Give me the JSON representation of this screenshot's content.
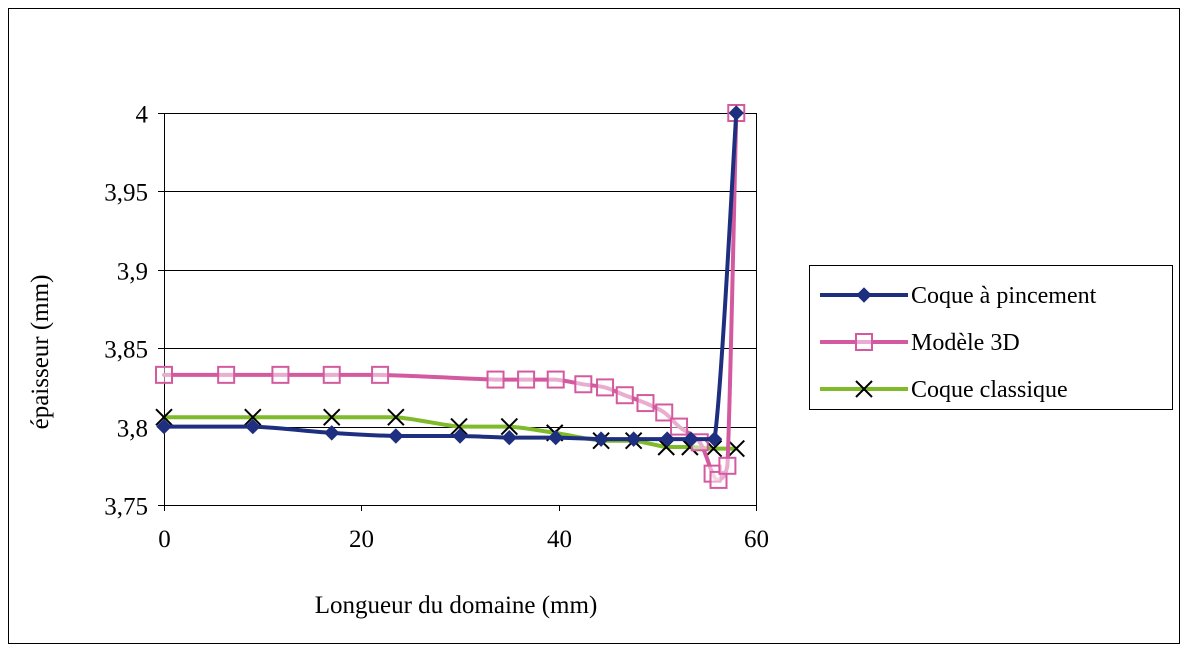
{
  "chart_data": {
    "type": "line",
    "title": "",
    "xlabel": "Longueur du domaine (mm)",
    "ylabel": "épaisseur (mm)",
    "xlim": [
      0,
      60
    ],
    "ylim": [
      3.75,
      4.0
    ],
    "xticks": [
      "0",
      "20",
      "40",
      "60"
    ],
    "yticks": [
      "3,75",
      "3,8",
      "3,85",
      "3,9",
      "3,95",
      "4"
    ],
    "grid": "horizontal",
    "legend_position": "right",
    "series": [
      {
        "name": "Coque à pincement",
        "color": "#1f2f7f",
        "marker": "filled-diamond",
        "x": [
          0,
          9,
          17,
          23.5,
          30,
          35,
          39.7,
          44.3,
          47.6,
          51,
          53.4,
          55.8,
          58
        ],
        "y": [
          3.8,
          3.8,
          3.796,
          3.794,
          3.794,
          3.793,
          3.793,
          3.792,
          3.792,
          3.792,
          3.792,
          3.792,
          4.0
        ]
      },
      {
        "name": "Modèle 3D",
        "color": "#d45a9f",
        "marker": "open-square",
        "x": [
          0,
          6.3,
          11.8,
          17,
          21.9,
          33.6,
          36.7,
          39.7,
          42.5,
          44.7,
          46.7,
          48.8,
          50.7,
          52.2,
          54.3,
          55.6,
          56.2,
          57.1,
          58
        ],
        "y": [
          3.833,
          3.833,
          3.833,
          3.833,
          3.833,
          3.83,
          3.83,
          3.83,
          3.827,
          3.825,
          3.82,
          3.815,
          3.809,
          3.8,
          3.79,
          3.77,
          3.766,
          3.775,
          4.0
        ]
      },
      {
        "name": "Coque classique",
        "color": "#7fba2a",
        "marker": "x",
        "x": [
          0,
          9,
          17,
          23.5,
          29.9,
          35,
          39.6,
          44.3,
          47.6,
          50.9,
          53.3,
          55.7,
          58
        ],
        "y": [
          3.806,
          3.806,
          3.806,
          3.806,
          3.8,
          3.8,
          3.796,
          3.791,
          3.791,
          3.787,
          3.787,
          3.786,
          3.786
        ]
      }
    ]
  }
}
